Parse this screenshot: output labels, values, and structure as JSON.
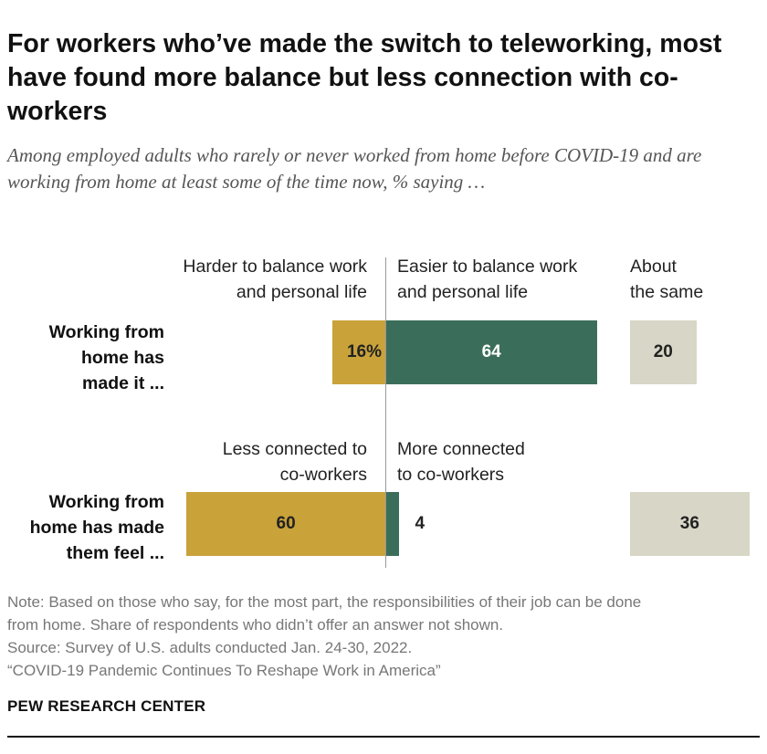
{
  "title": "For workers who’ve made the switch to teleworking, most have found more balance but less connection with co-workers",
  "subtitle": "Among employed adults who rarely or never worked from home before COVID-19 and are working from home at least some of the time now, % saying …",
  "colors": {
    "negative": "#C9A23A",
    "positive": "#3A6E5B",
    "same": "#D8D6C6",
    "axis": "#999999"
  },
  "chart_data": [
    {
      "type": "bar",
      "row_label_lines": [
        "Working from",
        "home has",
        "made it ..."
      ],
      "column_headers": {
        "negative": [
          "Harder to balance work",
          "and personal life"
        ],
        "positive": [
          "Easier to balance work",
          "and personal life"
        ],
        "same": [
          "About",
          "the same"
        ]
      },
      "series": [
        {
          "name": "Harder to balance work and personal life",
          "value": 16,
          "label": "16%"
        },
        {
          "name": "Easier to balance work and personal life",
          "value": 64,
          "label": "64"
        },
        {
          "name": "About the same",
          "value": 20,
          "label": "20"
        }
      ]
    },
    {
      "type": "bar",
      "row_label_lines": [
        "Working from",
        "home has made",
        "them feel ..."
      ],
      "column_headers": {
        "negative": [
          "Less connected to",
          "co-workers"
        ],
        "positive": [
          "More connected",
          "to co-workers"
        ],
        "same": []
      },
      "series": [
        {
          "name": "Less connected to co-workers",
          "value": 60,
          "label": "60"
        },
        {
          "name": "More connected to co-workers",
          "value": 4,
          "label": "4"
        },
        {
          "name": "About the same",
          "value": 36,
          "label": "36"
        }
      ]
    }
  ],
  "note_lines": [
    "Note: Based on those who say, for the most part, the responsibilities of their job can be done",
    "from home. Share of respondents who didn’t offer an answer not shown.",
    "Source: Survey of U.S. adults conducted Jan. 24-30, 2022.",
    "“COVID-19 Pandemic Continues To Reshape Work in America”"
  ],
  "brand": "PEW RESEARCH CENTER"
}
